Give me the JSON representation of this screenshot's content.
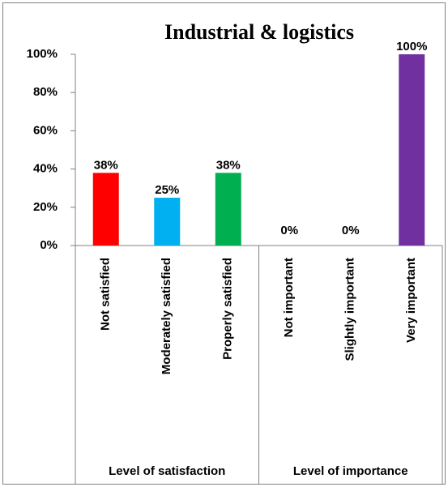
{
  "chart_data": {
    "type": "bar",
    "title": "Industrial & logistics",
    "groups": [
      {
        "name": "Level of satisfaction",
        "categories": [
          "Not satisfied",
          "Moderately satisfied",
          "Properly satisfied"
        ],
        "values": [
          38,
          25,
          38
        ],
        "value_labels": [
          "38%",
          "25%",
          "38%"
        ],
        "colors": [
          "#ff0000",
          "#00b0f0",
          "#00b050"
        ]
      },
      {
        "name": "Level of importance",
        "categories": [
          "Not important",
          "Slightly important",
          "Very important"
        ],
        "values": [
          0,
          0,
          100
        ],
        "value_labels": [
          "0%",
          "0%",
          "100%"
        ],
        "colors": [
          "#4472c4",
          "#4472c4",
          "#7030a0"
        ]
      }
    ],
    "ylim": [
      0,
      100
    ],
    "yticks": [
      {
        "value": 0,
        "label": "0%"
      },
      {
        "value": 20,
        "label": "20%"
      },
      {
        "value": 40,
        "label": "40%"
      },
      {
        "value": 60,
        "label": "60%"
      },
      {
        "value": 80,
        "label": "80%"
      },
      {
        "value": 100,
        "label": "100%"
      }
    ],
    "grid": false
  }
}
